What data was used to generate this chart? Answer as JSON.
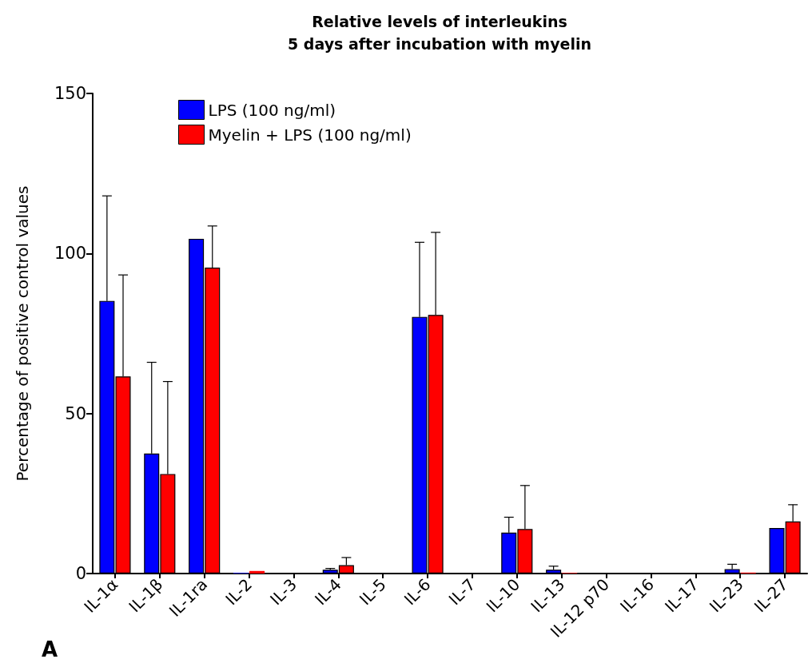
{
  "chart_data": {
    "type": "bar",
    "title": "Relative levels of interleukins\n5 days after incubation with myelin",
    "ylabel": "Percentage of positive control values",
    "categories": [
      "IL-1α",
      "IL-1β",
      "IL-1ra",
      "IL-2",
      "IL-3",
      "IL-4",
      "IL-5",
      "IL-6",
      "IL-7",
      "IL-10",
      "IL-13",
      "IL-12 p70",
      "IL-16",
      "IL-17",
      "IL-23",
      "IL-27"
    ],
    "series": [
      {
        "name": "LPS (100 ng/ml)",
        "color": "#0000ff",
        "values": [
          85.2,
          37.5,
          104.6,
          0.2,
          0,
          1.2,
          0,
          80.2,
          0,
          12.8,
          1.2,
          0,
          0,
          0,
          1.4,
          14.2
        ],
        "errors": [
          [
            85.2,
            118
          ],
          [
            37.5,
            66
          ],
          null,
          null,
          null,
          [
            1.2,
            1.6
          ],
          null,
          [
            80.2,
            103.5
          ],
          null,
          [
            12.8,
            17.6
          ],
          [
            1.2,
            2.3
          ],
          null,
          null,
          null,
          [
            1.4,
            2.9
          ],
          null
        ]
      },
      {
        "name": "Myelin + LPS (100 ng/ml)",
        "color": "#ff0000",
        "values": [
          61.6,
          31.1,
          95.6,
          0.8,
          0,
          2.6,
          0,
          80.8,
          0,
          13.9,
          0.2,
          0,
          0,
          0,
          0.3,
          16.3
        ],
        "errors": [
          [
            61.6,
            93.3
          ],
          [
            31.1,
            60
          ],
          [
            95.6,
            108.6
          ],
          null,
          null,
          [
            2.6,
            5
          ],
          null,
          [
            80.8,
            106.6
          ],
          null,
          [
            13.9,
            27.5
          ],
          null,
          null,
          null,
          null,
          null,
          [
            16.3,
            21.5
          ]
        ]
      }
    ],
    "ylim": [
      0,
      150
    ],
    "yticks": [
      0,
      50,
      100,
      150
    ],
    "grid": false,
    "legend": "top left",
    "annotations": [
      "A"
    ]
  }
}
